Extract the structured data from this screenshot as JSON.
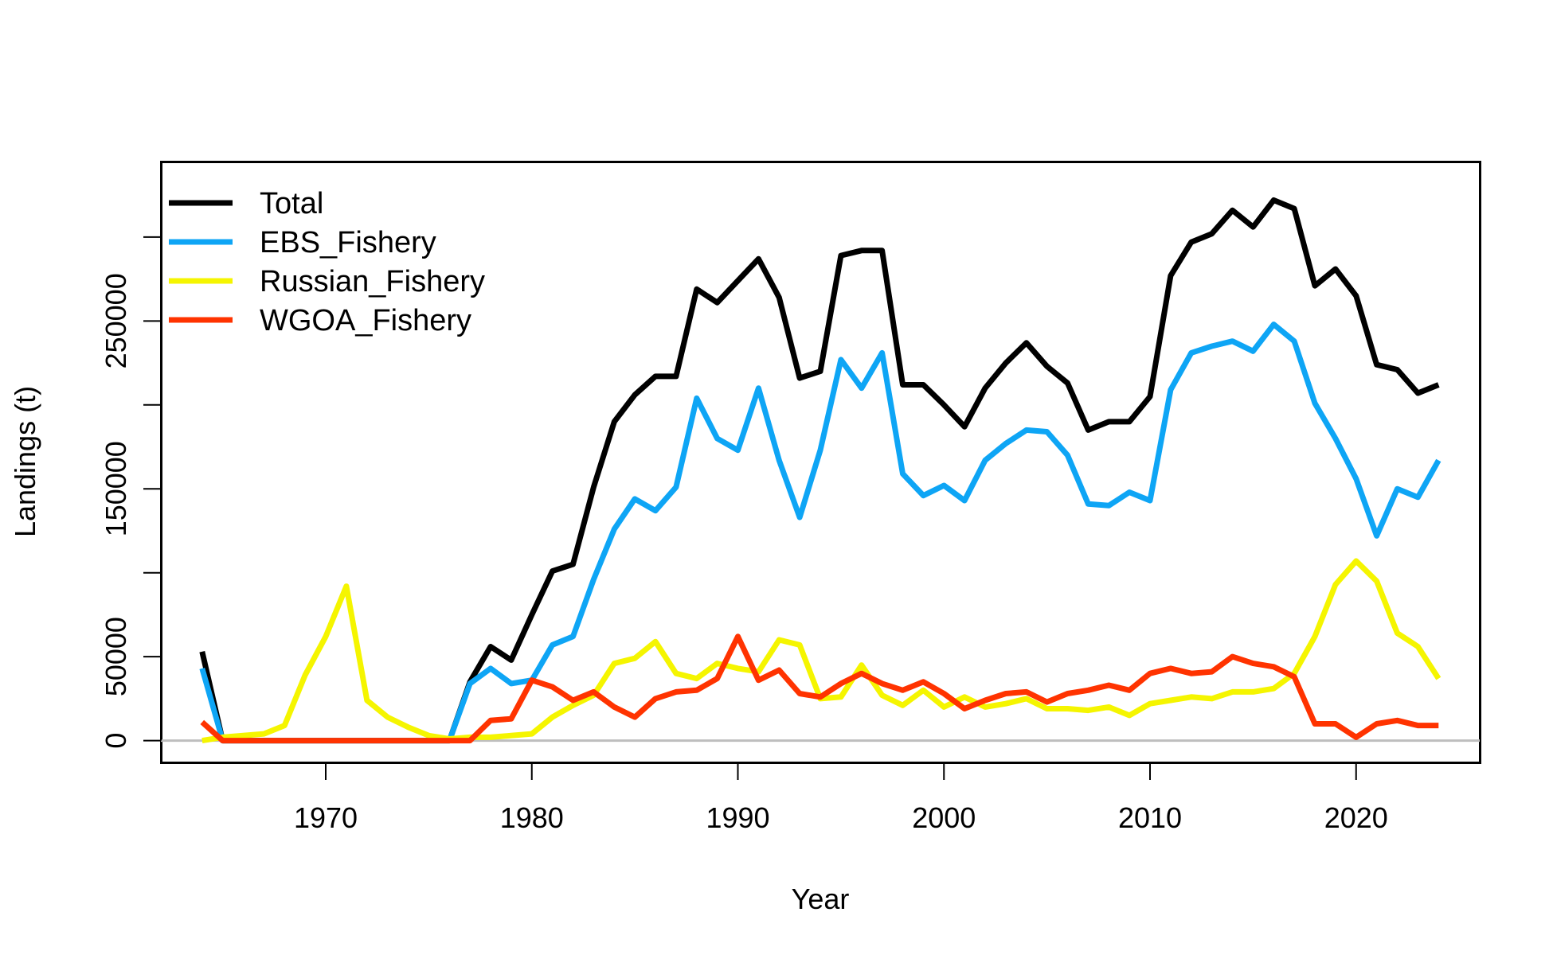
{
  "chart_data": {
    "type": "line",
    "title": "",
    "xlabel": "Year",
    "ylabel": "Landings (t)",
    "xlim": [
      1962,
      2026
    ],
    "ylim": [
      -13000,
      345000
    ],
    "x_ticks": [
      1970,
      1980,
      1990,
      2000,
      2010,
      2020
    ],
    "y_ticks": [
      0,
      50000,
      150000,
      250000
    ],
    "y_ticks_unlabeled": [
      100000,
      200000,
      300000
    ],
    "baseline": 0,
    "grid": false,
    "legend_position": "top-left",
    "x": [
      1964,
      1965,
      1966,
      1967,
      1968,
      1969,
      1970,
      1971,
      1972,
      1973,
      1974,
      1975,
      1976,
      1977,
      1978,
      1979,
      1980,
      1981,
      1982,
      1983,
      1984,
      1985,
      1986,
      1987,
      1988,
      1989,
      1990,
      1991,
      1992,
      1993,
      1994,
      1995,
      1996,
      1997,
      1998,
      1999,
      2000,
      2001,
      2002,
      2003,
      2004,
      2005,
      2006,
      2007,
      2008,
      2009,
      2010,
      2011,
      2012,
      2013,
      2014,
      2015,
      2016,
      2017,
      2018,
      2019,
      2020,
      2021,
      2022,
      2023,
      2024
    ],
    "series": [
      {
        "name": "Total",
        "color": "#000000",
        "values": [
          53000,
          0,
          0,
          0,
          0,
          0,
          0,
          0,
          0,
          0,
          0,
          0,
          0,
          35000,
          56000,
          48000,
          75000,
          101000,
          105000,
          151000,
          190000,
          206000,
          217000,
          217000,
          269000,
          261000,
          274000,
          287000,
          264000,
          216000,
          220000,
          289000,
          292000,
          292000,
          212000,
          212000,
          200000,
          187000,
          210000,
          225000,
          237000,
          223000,
          213000,
          185000,
          190000,
          190000,
          205000,
          277000,
          297000,
          302000,
          316000,
          306000,
          322000,
          317000,
          271000,
          281000,
          265000,
          224000,
          221000,
          207000,
          212000
        ]
      },
      {
        "name": "EBS_Fishery",
        "color": "#0EA5F5",
        "values": [
          43000,
          0,
          0,
          0,
          0,
          0,
          0,
          0,
          0,
          0,
          0,
          0,
          0,
          34000,
          43000,
          34000,
          36000,
          57000,
          62000,
          96000,
          126000,
          144000,
          137000,
          151000,
          204000,
          180000,
          173000,
          210000,
          167000,
          133000,
          173000,
          227000,
          210000,
          231000,
          159000,
          146000,
          152000,
          143000,
          167000,
          177000,
          185000,
          184000,
          170000,
          141000,
          140000,
          148000,
          143000,
          209000,
          231000,
          235000,
          238000,
          232000,
          248000,
          238000,
          201000,
          180000,
          156000,
          122000,
          150000,
          145000,
          167000
        ]
      },
      {
        "name": "Russian_Fishery",
        "color": "#F5F500",
        "values": [
          0,
          2000,
          3000,
          4000,
          9000,
          39000,
          62000,
          92000,
          24000,
          14000,
          8000,
          3000,
          1000,
          2000,
          2000,
          3000,
          4000,
          14000,
          21000,
          27000,
          46000,
          49000,
          59000,
          40000,
          37000,
          46000,
          43000,
          41000,
          60000,
          57000,
          25000,
          26000,
          45000,
          27000,
          21000,
          30000,
          20000,
          26000,
          20000,
          22000,
          25000,
          19000,
          19000,
          18000,
          20000,
          15000,
          22000,
          24000,
          26000,
          25000,
          29000,
          29000,
          31000,
          40000,
          62000,
          93000,
          107000,
          95000,
          64000,
          56000,
          37000
        ]
      },
      {
        "name": "WGOA_Fishery",
        "color": "#FF3300",
        "values": [
          11000,
          0,
          0,
          0,
          0,
          0,
          0,
          0,
          0,
          0,
          0,
          0,
          0,
          0,
          12000,
          13000,
          36000,
          32000,
          24000,
          29000,
          20000,
          14000,
          25000,
          29000,
          30000,
          37000,
          62000,
          36000,
          42000,
          28000,
          26000,
          34000,
          40000,
          34000,
          30000,
          35000,
          28000,
          19000,
          24000,
          28000,
          29000,
          23000,
          28000,
          30000,
          33000,
          30000,
          40000,
          43000,
          40000,
          41000,
          50000,
          46000,
          44000,
          38000,
          10000,
          10000,
          2000,
          10000,
          12000,
          9000,
          9000
        ]
      }
    ]
  }
}
